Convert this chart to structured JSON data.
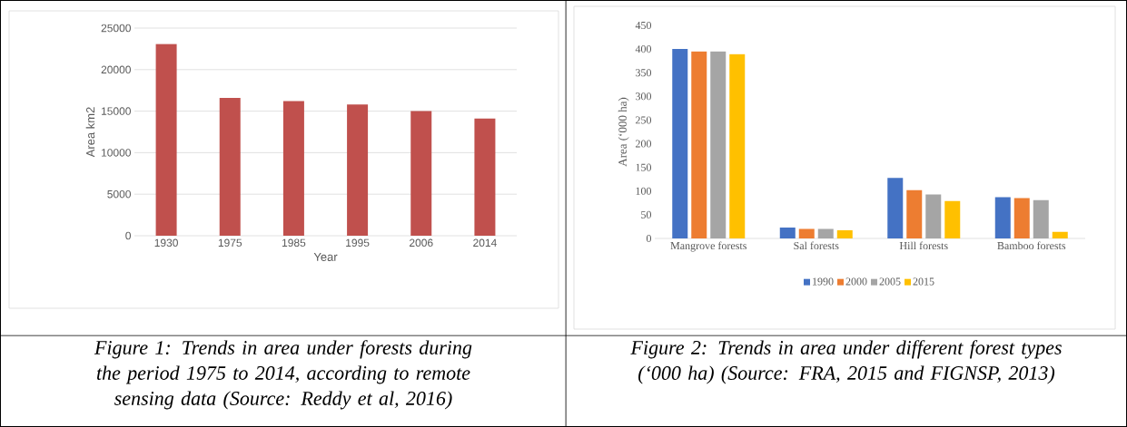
{
  "chart_data": [
    {
      "type": "bar",
      "xlabel": "Year",
      "ylabel": "Area km2",
      "categories": [
        "1930",
        "1975",
        "1985",
        "1995",
        "2006",
        "2014"
      ],
      "values": [
        23100,
        16600,
        16200,
        15800,
        15000,
        14100
      ],
      "color": "#c0504d",
      "ylim": [
        0,
        25000
      ],
      "yticks": [
        0,
        5000,
        10000,
        15000,
        20000,
        25000
      ],
      "grid": "y",
      "annotations": [
        "Figure 1: Trends in area under forests during the period 1975 to 2014, according to remote sensing data (Source: Reddy et al, 2016)"
      ]
    },
    {
      "type": "bar",
      "ylabel": "Area (‘000 ha)",
      "categories": [
        "Mangrove forests",
        "Sal forests",
        "Hill forests",
        "Bamboo forests"
      ],
      "series": [
        {
          "name": "1990",
          "color": "#4472c4",
          "values": [
            400,
            23,
            128,
            87
          ]
        },
        {
          "name": "2000",
          "color": "#ed7d31",
          "values": [
            395,
            20,
            102,
            85
          ]
        },
        {
          "name": "2005",
          "color": "#a5a5a5",
          "values": [
            395,
            20,
            93,
            81
          ]
        },
        {
          "name": "2015",
          "color": "#ffc000",
          "values": [
            389,
            17,
            79,
            14
          ]
        }
      ],
      "ylim": [
        0,
        450
      ],
      "yticks": [
        0,
        50,
        100,
        150,
        200,
        250,
        300,
        350,
        400,
        450
      ],
      "legend": "bottom",
      "annotations": [
        "Figure 2: Trends in area under different forest types (‘000 ha) (Source: FRA, 2015 and FIGNSP, 2013)"
      ]
    }
  ]
}
